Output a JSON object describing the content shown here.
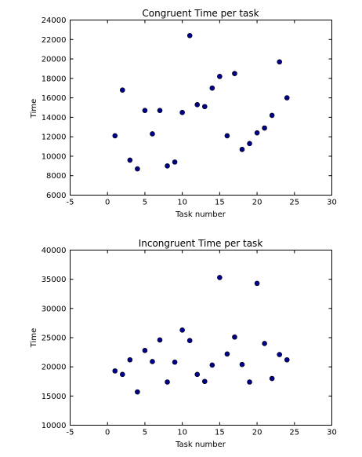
{
  "chart_data": [
    {
      "type": "scatter",
      "title": "Congruent Time per task",
      "xlabel": "Task number",
      "ylabel": "Time",
      "xlim": [
        -5,
        30
      ],
      "ylim": [
        6000,
        24000
      ],
      "xticks": [
        -5,
        0,
        5,
        10,
        15,
        20,
        25,
        30
      ],
      "yticks": [
        6000,
        8000,
        10000,
        12000,
        14000,
        16000,
        18000,
        20000,
        22000,
        24000
      ],
      "grid": false,
      "marker_color": "#00008B",
      "x": [
        1,
        2,
        3,
        4,
        5,
        6,
        7,
        8,
        9,
        10,
        11,
        12,
        13,
        14,
        15,
        16,
        17,
        18,
        19,
        20,
        21,
        22,
        23,
        24
      ],
      "y": [
        12100,
        16800,
        9600,
        8700,
        14700,
        12300,
        14700,
        9000,
        9400,
        14500,
        22400,
        15300,
        15100,
        17000,
        18200,
        12100,
        18500,
        10700,
        11300,
        12400,
        12900,
        14200,
        19700,
        16000
      ]
    },
    {
      "type": "scatter",
      "title": "Incongruent Time per task",
      "xlabel": "Task number",
      "ylabel": "Time",
      "xlim": [
        -5,
        30
      ],
      "ylim": [
        10000,
        40000
      ],
      "xticks": [
        -5,
        0,
        5,
        10,
        15,
        20,
        25,
        30
      ],
      "yticks": [
        10000,
        15000,
        20000,
        25000,
        30000,
        35000,
        40000
      ],
      "grid": false,
      "marker_color": "#00008B",
      "x": [
        1,
        2,
        3,
        4,
        5,
        6,
        7,
        8,
        9,
        10,
        11,
        12,
        13,
        14,
        15,
        16,
        17,
        18,
        19,
        20,
        21,
        22,
        23,
        24
      ],
      "y": [
        19300,
        18700,
        21200,
        15700,
        22800,
        20900,
        24600,
        17400,
        20800,
        26300,
        24500,
        18700,
        17500,
        20300,
        35300,
        22200,
        25100,
        20400,
        17400,
        34300,
        24000,
        18000,
        22100,
        21200
      ]
    }
  ]
}
